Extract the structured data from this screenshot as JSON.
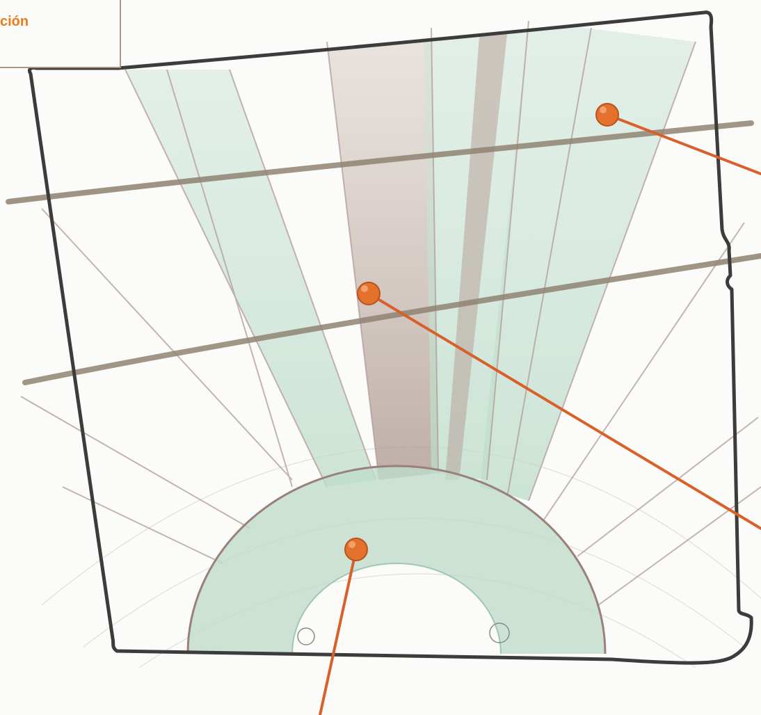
{
  "label_box": {
    "text": "ción"
  },
  "edge_text": {
    "line1": "",
    "line2": ""
  },
  "colors": {
    "frame": "#3c3c3c",
    "band": "#8f8272",
    "pencil_green": "#a9cfbb",
    "pencil_brown": "#a98a86",
    "marker": "#e4712c",
    "leader": "#d9602a",
    "label_text": "#ee7a19",
    "label_border": "#a79880"
  },
  "markers": [
    {
      "name": "marker-upper-right"
    },
    {
      "name": "marker-center"
    },
    {
      "name": "marker-lower-arch"
    }
  ]
}
